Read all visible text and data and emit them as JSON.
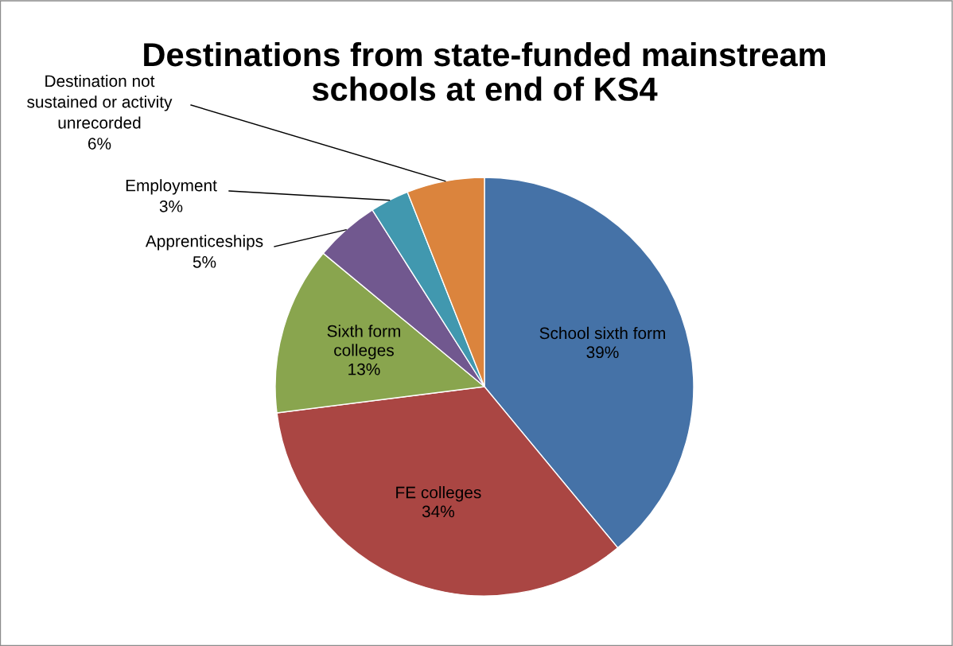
{
  "chart_data": {
    "type": "pie",
    "title": "Destinations from state-funded mainstream\nschools at end of KS4",
    "categories": [
      "School sixth form",
      "FE colleges",
      "Sixth form\ncolleges",
      "Apprenticeships",
      "Employment",
      "Destination not\nsustained or activity\nunrecorded"
    ],
    "values": [
      39,
      34,
      13,
      5,
      3,
      6
    ],
    "value_labels": [
      "39%",
      "34%",
      "13%",
      "5%",
      "3%",
      "6%"
    ],
    "colors": [
      "#4572a7",
      "#aa4643",
      "#89a54e",
      "#71588f",
      "#4198af",
      "#db843d"
    ],
    "legend": false
  }
}
